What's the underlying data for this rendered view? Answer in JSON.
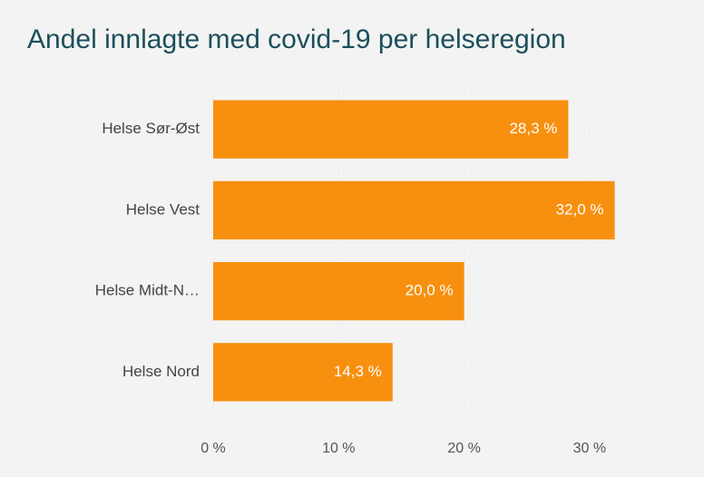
{
  "chart_data": {
    "type": "bar",
    "orientation": "horizontal",
    "title": "Andel innlagte med covid-19 per helseregion",
    "categories": [
      "Helse Sør-Øst",
      "Helse Vest",
      "Helse Midt-N…",
      "Helse Nord"
    ],
    "values": [
      28.3,
      32.0,
      20.0,
      14.3
    ],
    "value_labels": [
      "28,3 %",
      "32,0 %",
      "20,0 %",
      "14,3 %"
    ],
    "color": "#f7900f",
    "xlim": [
      0,
      38
    ],
    "xticks": [
      {
        "value": 0,
        "label": "0 %"
      },
      {
        "value": 10,
        "label": "10 %"
      },
      {
        "value": 20,
        "label": "20 %"
      },
      {
        "value": 30,
        "label": "30 %"
      }
    ],
    "grid": true
  }
}
